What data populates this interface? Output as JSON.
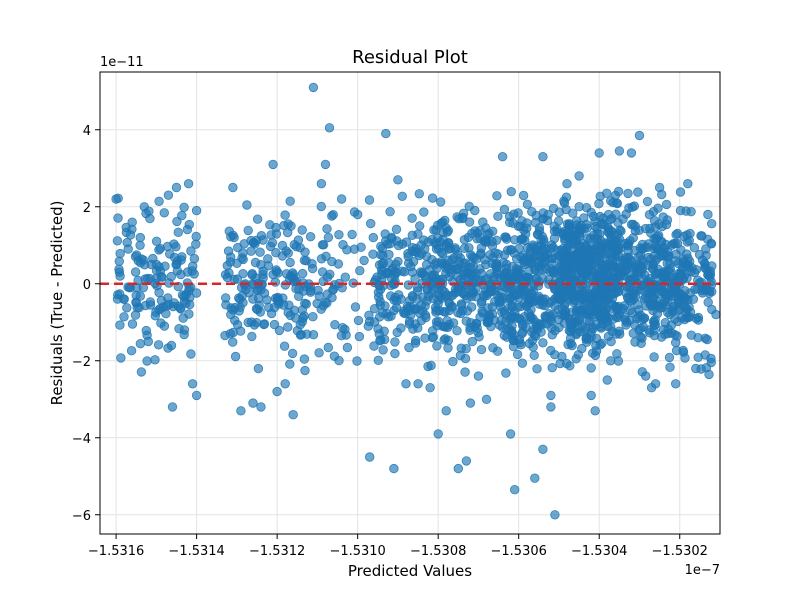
{
  "chart_data": {
    "type": "scatter",
    "title": "Residual Plot",
    "xlabel": "Predicted Values",
    "ylabel": "Residuals (True - Predicted)",
    "x_offset_label": "1e−7",
    "y_offset_label": "1e−11",
    "xlim": [
      -1.53164,
      -1.5301
    ],
    "ylim": [
      -6.5,
      5.5
    ],
    "xticks": [
      -1.5316,
      -1.5314,
      -1.5312,
      -1.531,
      -1.5308,
      -1.5306,
      -1.5304,
      -1.5302
    ],
    "xtick_labels": [
      "−1.5316",
      "−1.5314",
      "−1.5312",
      "−1.5310",
      "−1.5308",
      "−1.5306",
      "−1.5304",
      "−1.5302"
    ],
    "yticks": [
      -6,
      -4,
      -2,
      0,
      2,
      4
    ],
    "ytick_labels": [
      "−6",
      "−4",
      "−2",
      "0",
      "2",
      "4"
    ],
    "grid": true,
    "reference_line": {
      "y": 0,
      "color": "#d62728",
      "style": "dashed"
    },
    "point_color": "#1f77b4",
    "point_alpha": 0.65,
    "points": [
      [
        -1.5316,
        2.2
      ],
      [
        -1.53156,
        1.6
      ],
      [
        -1.53153,
        2.0
      ],
      [
        -1.53147,
        2.3
      ],
      [
        -1.53145,
        2.5
      ],
      [
        -1.53142,
        2.6
      ],
      [
        -1.5314,
        1.9
      ],
      [
        -1.53159,
        0.2
      ],
      [
        -1.53157,
        0.9
      ],
      [
        -1.53155,
        -0.3
      ],
      [
        -1.53152,
        -1.5
      ],
      [
        -1.5315,
        0.5
      ],
      [
        -1.53148,
        -1.1
      ],
      [
        -1.53146,
        -3.2
      ],
      [
        -1.53143,
        -1.2
      ],
      [
        -1.53141,
        -2.6
      ],
      [
        -1.5314,
        -2.9
      ],
      [
        -1.53158,
        -0.4
      ],
      [
        -1.53154,
        1.2
      ],
      [
        -1.53131,
        2.5
      ],
      [
        -1.53129,
        -3.3
      ],
      [
        -1.53126,
        -3.1
      ],
      [
        -1.53124,
        -3.2
      ],
      [
        -1.53121,
        3.1
      ],
      [
        -1.5312,
        -2.8
      ],
      [
        -1.53118,
        -2.6
      ],
      [
        -1.53116,
        -3.4
      ],
      [
        -1.53111,
        5.1
      ],
      [
        -1.53109,
        2.6
      ],
      [
        -1.53108,
        3.1
      ],
      [
        -1.53107,
        4.05
      ],
      [
        -1.53104,
        2.2
      ],
      [
        -1.531,
        1.8
      ],
      [
        -1.53097,
        -4.5
      ],
      [
        -1.53093,
        3.9
      ],
      [
        -1.53091,
        -4.8
      ],
      [
        -1.5309,
        2.7
      ],
      [
        -1.53088,
        -2.6
      ],
      [
        -1.53085,
        -2.6
      ],
      [
        -1.53082,
        -2.7
      ],
      [
        -1.5308,
        -3.9
      ],
      [
        -1.53078,
        -3.3
      ],
      [
        -1.53075,
        -4.8
      ],
      [
        -1.53073,
        -4.6
      ],
      [
        -1.53072,
        -3.1
      ],
      [
        -1.5307,
        -2.4
      ],
      [
        -1.53068,
        -3.0
      ],
      [
        -1.53064,
        3.3
      ],
      [
        -1.53062,
        -3.9
      ],
      [
        -1.53061,
        -5.35
      ],
      [
        -1.53056,
        -5.05
      ],
      [
        -1.53054,
        3.3
      ],
      [
        -1.53054,
        -4.3
      ],
      [
        -1.53052,
        -2.9
      ],
      [
        -1.53052,
        -3.2
      ],
      [
        -1.53051,
        -6.0
      ],
      [
        -1.53048,
        2.6
      ],
      [
        -1.53045,
        2.8
      ],
      [
        -1.53042,
        -2.9
      ],
      [
        -1.53041,
        -3.3
      ],
      [
        -1.5304,
        3.4
      ],
      [
        -1.53038,
        -2.5
      ],
      [
        -1.53035,
        3.45
      ],
      [
        -1.53032,
        3.4
      ],
      [
        -1.5303,
        3.85
      ],
      [
        -1.53027,
        -2.7
      ],
      [
        -1.53026,
        -2.6
      ],
      [
        -1.53021,
        -2.6
      ],
      [
        -1.53016,
        -2.2
      ],
      [
        -1.53018,
        2.6
      ],
      [
        -1.53025,
        2.5
      ],
      [
        -1.53013,
        1.8
      ],
      [
        -1.53011,
        -0.8
      ]
    ]
  }
}
